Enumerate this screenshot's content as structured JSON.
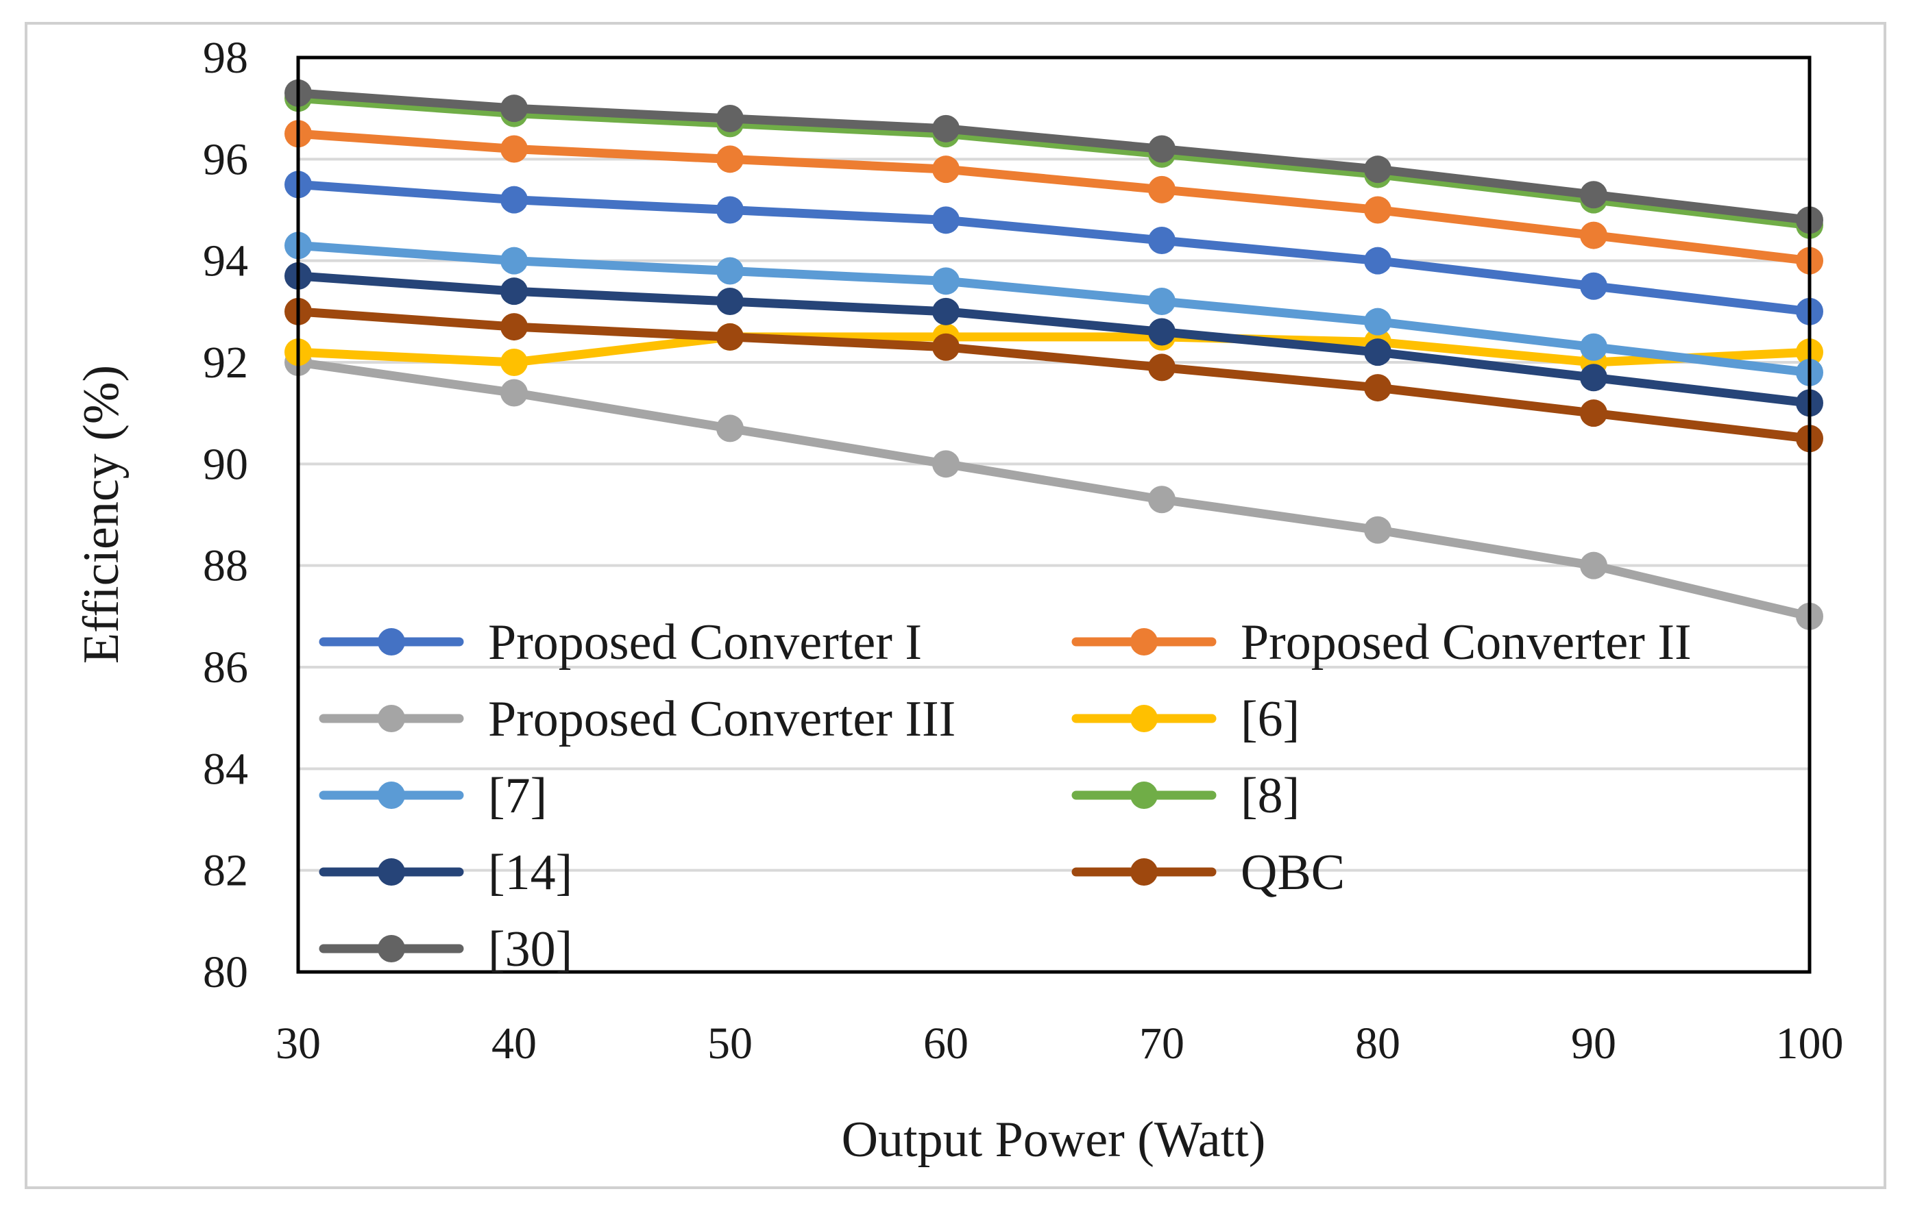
{
  "chart_data": {
    "type": "line",
    "title": "",
    "xlabel": "Output Power (Watt)",
    "ylabel": "Efficiency (%)",
    "x": [
      30,
      40,
      50,
      60,
      70,
      80,
      90,
      100
    ],
    "xlim": [
      30,
      100
    ],
    "ylim": [
      80,
      98
    ],
    "yticks": [
      80,
      82,
      84,
      86,
      88,
      90,
      92,
      94,
      96,
      98
    ],
    "grid": true,
    "legend_position": "bottom-left-inside",
    "series": [
      {
        "name": "Proposed Converter I",
        "color": "#4472C4",
        "values": [
          95.5,
          95.2,
          95.0,
          94.8,
          94.4,
          94.0,
          93.5,
          93.0
        ]
      },
      {
        "name": "Proposed Converter II",
        "color": "#ED7D31",
        "values": [
          96.5,
          96.2,
          96.0,
          95.8,
          95.4,
          95.0,
          94.5,
          94.0
        ]
      },
      {
        "name": "Proposed Converter III",
        "color": "#A5A5A5",
        "values": [
          92.0,
          91.4,
          90.7,
          90.0,
          89.3,
          88.7,
          88.0,
          87.0
        ]
      },
      {
        "name": "[6]",
        "color": "#FFC000",
        "values": [
          92.2,
          92.0,
          92.5,
          92.5,
          92.5,
          92.4,
          92.0,
          92.2
        ]
      },
      {
        "name": "[7]",
        "color": "#5B9BD5",
        "values": [
          94.3,
          94.0,
          93.8,
          93.6,
          93.2,
          92.8,
          92.3,
          91.8
        ]
      },
      {
        "name": "[8]",
        "color": "#70AD47",
        "values": [
          97.2,
          96.9,
          96.7,
          96.5,
          96.1,
          95.7,
          95.2,
          94.7
        ]
      },
      {
        "name": "[14]",
        "color": "#264478",
        "values": [
          93.7,
          93.4,
          93.2,
          93.0,
          92.6,
          92.2,
          91.7,
          91.2
        ]
      },
      {
        "name": "QBC",
        "color": "#9E480E",
        "values": [
          93.0,
          92.7,
          92.5,
          92.3,
          91.9,
          91.5,
          91.0,
          90.5
        ]
      },
      {
        "name": "[30]",
        "color": "#636363",
        "values": [
          97.3,
          97.0,
          96.8,
          96.6,
          96.2,
          95.8,
          95.3,
          94.8
        ]
      }
    ]
  }
}
